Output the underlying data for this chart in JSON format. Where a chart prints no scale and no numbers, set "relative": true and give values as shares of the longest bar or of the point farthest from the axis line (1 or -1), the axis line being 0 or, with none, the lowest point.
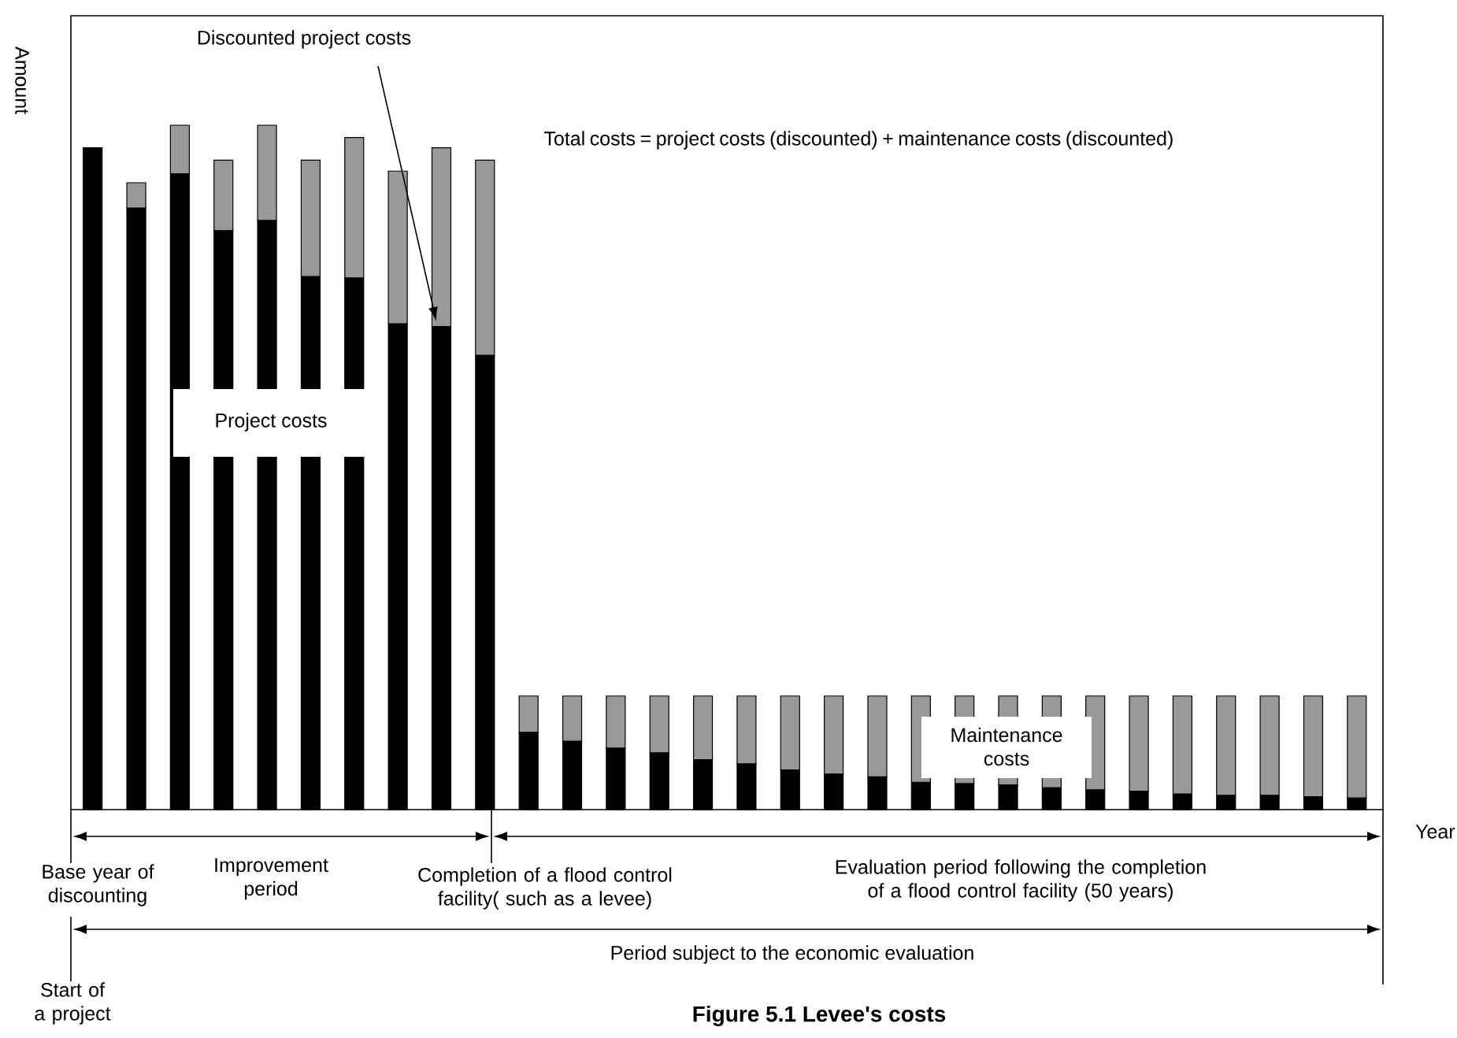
{
  "chart_data": {
    "type": "bar",
    "stacked": true,
    "relative": true,
    "title": "Figure 5.1 Levee's costs",
    "xlabel": "Year",
    "ylabel": "Amount",
    "categories": [
      null,
      null,
      null,
      null,
      null,
      null,
      null,
      null,
      null,
      null,
      null,
      null,
      null,
      null,
      null,
      null,
      null,
      null,
      null,
      null,
      null,
      null,
      null,
      null,
      null,
      null,
      null,
      null,
      null,
      null
    ],
    "series": [
      {
        "color": "#000000",
        "values": [
          0.967,
          0.879,
          0.929,
          0.846,
          0.861,
          0.779,
          0.777,
          0.71,
          0.706,
          0.664,
          0.113,
          0.1,
          0.09,
          0.083,
          0.073,
          0.067,
          0.058,
          0.052,
          0.048,
          0.04,
          0.038,
          0.036,
          0.032,
          0.029,
          0.027,
          0.023,
          0.021,
          0.021,
          0.019,
          0.017
        ]
      },
      {
        "color": "#999999",
        "values": [
          0,
          0.037,
          0.071,
          0.103,
          0.139,
          0.17,
          0.205,
          0.223,
          0.261,
          0.285,
          0.053,
          0.066,
          0.076,
          0.083,
          0.093,
          0.099,
          0.108,
          0.114,
          0.118,
          0.126,
          0.128,
          0.13,
          0.134,
          0.137,
          0.139,
          0.143,
          0.145,
          0.145,
          0.147,
          0.149
        ]
      }
    ],
    "annotations": [
      "Discounted project costs",
      "Total costs = project costs (discounted) + maintenance costs (discounted)",
      "Project costs",
      "Maintenance costs",
      "Base year of discounting",
      "Improvement period",
      "Completion of a flood control facility( such as a levee)",
      "Evaluation period following the completion of a flood control facility (50 years)",
      "Period subject to the economic evaluation",
      "Start of a project"
    ]
  }
}
